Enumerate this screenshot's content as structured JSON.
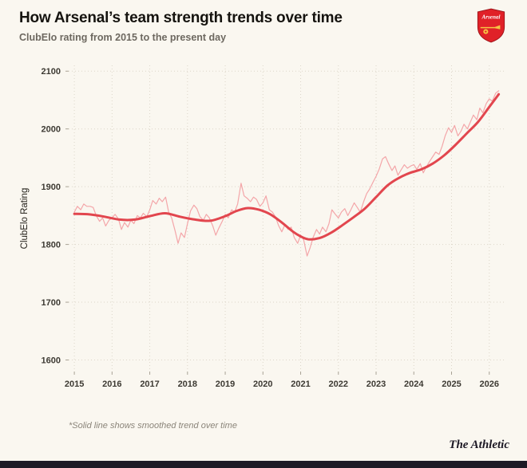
{
  "header": {
    "crest_label": "Arsenal"
  },
  "footnote": "*Solid line shows smoothed trend over time",
  "branding": {
    "name": "The Athletic"
  },
  "colors": {
    "background": "#faf7f0",
    "raw_line": "#f2989c",
    "smooth_line": "#e2464e",
    "grid": "#dcd6c9",
    "footer_bar": "#1e1a26",
    "crest_red": "#e02128",
    "crest_gold": "#f6c344"
  },
  "chart_data": {
    "type": "line",
    "title": "How Arsenal’s team strength trends over time",
    "subtitle": "ClubElo rating from 2015 to the present day",
    "xlabel": "",
    "ylabel": "ClubElo Rating",
    "x_ticks": [
      2015,
      2016,
      2017,
      2018,
      2019,
      2020,
      2021,
      2022,
      2023,
      2024,
      2025,
      2026
    ],
    "y_ticks": [
      1600,
      1700,
      1800,
      1900,
      2000,
      2100
    ],
    "xlim": [
      2014.85,
      2026.45
    ],
    "ylim": [
      1580,
      2110
    ],
    "grid": "dotted",
    "grid_color": "#dcd6c9",
    "legend": "none",
    "series": [
      {
        "name": "ClubElo rating",
        "color": "#f2989c",
        "width": 1.2,
        "opacity": 0.85,
        "smooth": false,
        "points": [
          [
            2015.0,
            1856
          ],
          [
            2015.08,
            1866
          ],
          [
            2015.17,
            1860
          ],
          [
            2015.25,
            1870
          ],
          [
            2015.33,
            1866
          ],
          [
            2015.42,
            1866
          ],
          [
            2015.5,
            1864
          ],
          [
            2015.58,
            1850
          ],
          [
            2015.67,
            1840
          ],
          [
            2015.75,
            1846
          ],
          [
            2015.83,
            1832
          ],
          [
            2015.92,
            1842
          ],
          [
            2016.0,
            1846
          ],
          [
            2016.08,
            1852
          ],
          [
            2016.17,
            1844
          ],
          [
            2016.25,
            1826
          ],
          [
            2016.33,
            1838
          ],
          [
            2016.42,
            1830
          ],
          [
            2016.5,
            1842
          ],
          [
            2016.58,
            1836
          ],
          [
            2016.67,
            1850
          ],
          [
            2016.75,
            1846
          ],
          [
            2016.83,
            1854
          ],
          [
            2016.92,
            1848
          ],
          [
            2017.0,
            1860
          ],
          [
            2017.08,
            1876
          ],
          [
            2017.17,
            1870
          ],
          [
            2017.25,
            1880
          ],
          [
            2017.33,
            1874
          ],
          [
            2017.42,
            1882
          ],
          [
            2017.5,
            1856
          ],
          [
            2017.58,
            1846
          ],
          [
            2017.67,
            1824
          ],
          [
            2017.75,
            1802
          ],
          [
            2017.83,
            1820
          ],
          [
            2017.92,
            1812
          ],
          [
            2018.0,
            1836
          ],
          [
            2018.08,
            1858
          ],
          [
            2018.17,
            1868
          ],
          [
            2018.25,
            1862
          ],
          [
            2018.33,
            1848
          ],
          [
            2018.42,
            1842
          ],
          [
            2018.5,
            1852
          ],
          [
            2018.58,
            1846
          ],
          [
            2018.67,
            1832
          ],
          [
            2018.75,
            1816
          ],
          [
            2018.83,
            1828
          ],
          [
            2018.92,
            1840
          ],
          [
            2019.0,
            1852
          ],
          [
            2019.08,
            1846
          ],
          [
            2019.17,
            1860
          ],
          [
            2019.25,
            1856
          ],
          [
            2019.33,
            1870
          ],
          [
            2019.42,
            1906
          ],
          [
            2019.5,
            1884
          ],
          [
            2019.58,
            1880
          ],
          [
            2019.67,
            1874
          ],
          [
            2019.75,
            1882
          ],
          [
            2019.83,
            1878
          ],
          [
            2019.92,
            1866
          ],
          [
            2020.0,
            1872
          ],
          [
            2020.08,
            1884
          ],
          [
            2020.17,
            1860
          ],
          [
            2020.25,
            1856
          ],
          [
            2020.33,
            1848
          ],
          [
            2020.42,
            1832
          ],
          [
            2020.5,
            1822
          ],
          [
            2020.58,
            1834
          ],
          [
            2020.67,
            1826
          ],
          [
            2020.75,
            1830
          ],
          [
            2020.83,
            1812
          ],
          [
            2020.92,
            1802
          ],
          [
            2021.0,
            1816
          ],
          [
            2021.08,
            1808
          ],
          [
            2021.17,
            1780
          ],
          [
            2021.25,
            1794
          ],
          [
            2021.33,
            1812
          ],
          [
            2021.42,
            1826
          ],
          [
            2021.5,
            1818
          ],
          [
            2021.58,
            1830
          ],
          [
            2021.67,
            1822
          ],
          [
            2021.75,
            1836
          ],
          [
            2021.83,
            1860
          ],
          [
            2021.92,
            1852
          ],
          [
            2022.0,
            1846
          ],
          [
            2022.08,
            1856
          ],
          [
            2022.17,
            1862
          ],
          [
            2022.25,
            1850
          ],
          [
            2022.33,
            1860
          ],
          [
            2022.42,
            1872
          ],
          [
            2022.5,
            1864
          ],
          [
            2022.58,
            1856
          ],
          [
            2022.67,
            1874
          ],
          [
            2022.75,
            1888
          ],
          [
            2022.83,
            1896
          ],
          [
            2022.92,
            1908
          ],
          [
            2023.0,
            1918
          ],
          [
            2023.08,
            1930
          ],
          [
            2023.17,
            1948
          ],
          [
            2023.25,
            1952
          ],
          [
            2023.33,
            1940
          ],
          [
            2023.42,
            1928
          ],
          [
            2023.5,
            1936
          ],
          [
            2023.58,
            1920
          ],
          [
            2023.67,
            1930
          ],
          [
            2023.75,
            1938
          ],
          [
            2023.83,
            1932
          ],
          [
            2023.92,
            1936
          ],
          [
            2024.0,
            1938
          ],
          [
            2024.08,
            1930
          ],
          [
            2024.17,
            1940
          ],
          [
            2024.25,
            1924
          ],
          [
            2024.33,
            1934
          ],
          [
            2024.42,
            1944
          ],
          [
            2024.5,
            1952
          ],
          [
            2024.58,
            1960
          ],
          [
            2024.67,
            1956
          ],
          [
            2024.75,
            1970
          ],
          [
            2024.83,
            1988
          ],
          [
            2024.92,
            2002
          ],
          [
            2025.0,
            1994
          ],
          [
            2025.08,
            2006
          ],
          [
            2025.17,
            1988
          ],
          [
            2025.25,
            1996
          ],
          [
            2025.33,
            2008
          ],
          [
            2025.42,
            2000
          ],
          [
            2025.5,
            2012
          ],
          [
            2025.58,
            2024
          ],
          [
            2025.67,
            2016
          ],
          [
            2025.75,
            2036
          ],
          [
            2025.83,
            2028
          ],
          [
            2025.92,
            2044
          ],
          [
            2026.0,
            2052
          ],
          [
            2026.08,
            2048
          ],
          [
            2026.17,
            2062
          ],
          [
            2026.25,
            2066
          ]
        ]
      },
      {
        "name": "Smoothed trend",
        "color": "#e2464e",
        "width": 3,
        "opacity": 1,
        "smooth": true,
        "points": [
          [
            2015.0,
            1853
          ],
          [
            2015.4,
            1852
          ],
          [
            2015.8,
            1848
          ],
          [
            2016.2,
            1843
          ],
          [
            2016.6,
            1843
          ],
          [
            2017.0,
            1849
          ],
          [
            2017.4,
            1854
          ],
          [
            2017.8,
            1848
          ],
          [
            2018.2,
            1843
          ],
          [
            2018.6,
            1841
          ],
          [
            2019.0,
            1849
          ],
          [
            2019.3,
            1858
          ],
          [
            2019.6,
            1863
          ],
          [
            2019.9,
            1860
          ],
          [
            2020.2,
            1852
          ],
          [
            2020.5,
            1838
          ],
          [
            2020.8,
            1822
          ],
          [
            2021.0,
            1814
          ],
          [
            2021.2,
            1809
          ],
          [
            2021.5,
            1811
          ],
          [
            2021.8,
            1820
          ],
          [
            2022.1,
            1833
          ],
          [
            2022.4,
            1847
          ],
          [
            2022.7,
            1862
          ],
          [
            2023.0,
            1882
          ],
          [
            2023.3,
            1902
          ],
          [
            2023.6,
            1915
          ],
          [
            2023.9,
            1924
          ],
          [
            2024.2,
            1930
          ],
          [
            2024.5,
            1940
          ],
          [
            2024.8,
            1954
          ],
          [
            2025.1,
            1972
          ],
          [
            2025.4,
            1992
          ],
          [
            2025.7,
            2012
          ],
          [
            2026.0,
            2038
          ],
          [
            2026.25,
            2060
          ]
        ]
      }
    ]
  }
}
